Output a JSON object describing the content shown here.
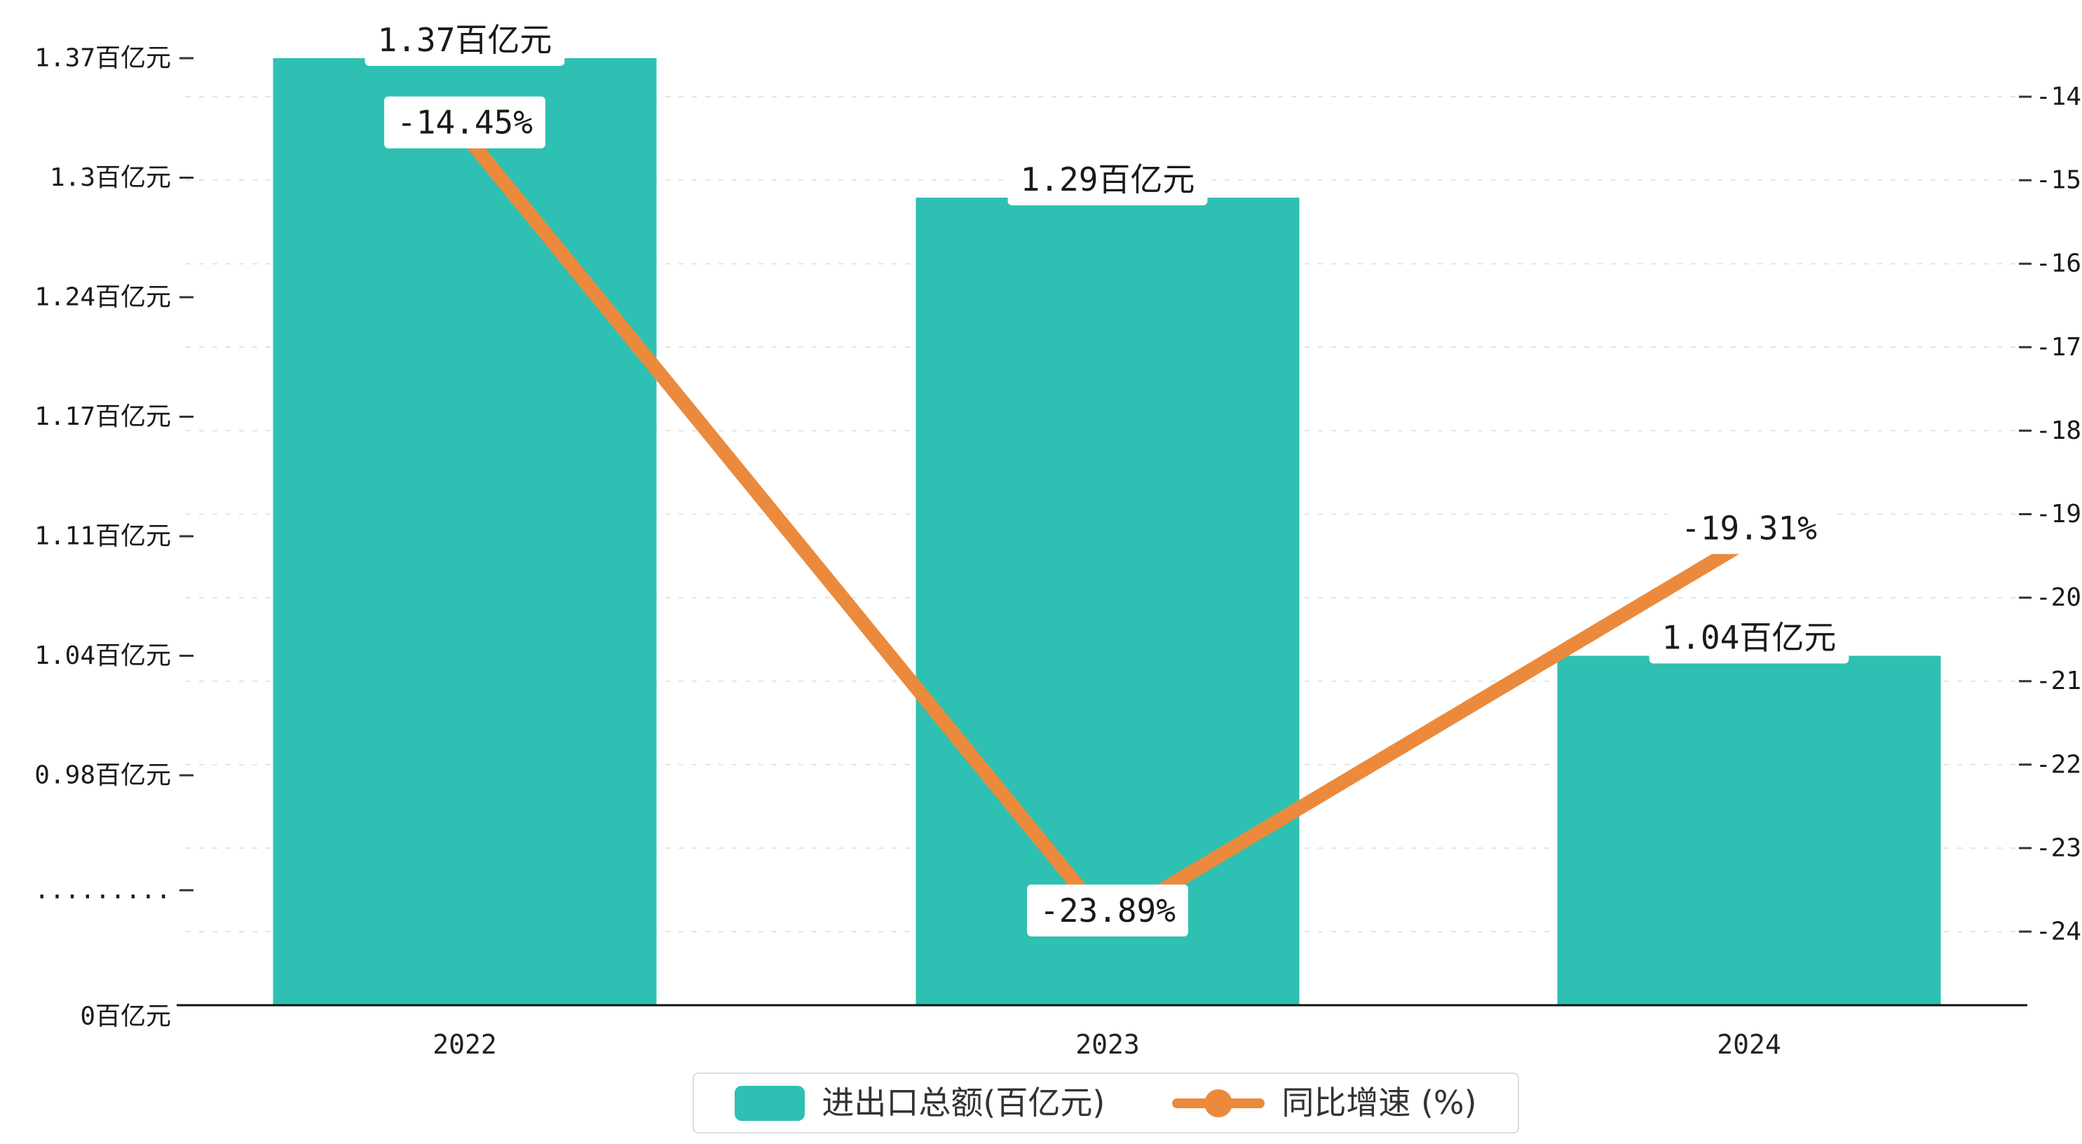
{
  "chart_data": {
    "type": "bar+line",
    "categories": [
      "2022",
      "2023",
      "2024"
    ],
    "series": [
      {
        "name": "进出口总额(百亿元)",
        "type": "bar",
        "axis": "left",
        "unit": "百亿元",
        "color": "#2EC0B2",
        "values": [
          1.37,
          1.29,
          1.04
        ],
        "data_labels": [
          "1.37百亿元",
          "1.29百亿元",
          "1.04百亿元"
        ]
      },
      {
        "name": "同比增速 (%)",
        "type": "line",
        "axis": "right",
        "unit": "%",
        "color": "#EB8A3C",
        "values": [
          -14.45,
          -23.89,
          -19.31
        ],
        "data_labels": [
          "-14.45%",
          "-23.89%",
          "-19.31%"
        ]
      }
    ],
    "left_axis": {
      "tick_labels": [
        "1.37百亿元",
        "1.3百亿元",
        "1.24百亿元",
        "1.17百亿元",
        "1.11百亿元",
        "1.04百亿元",
        "0.98百亿元"
      ],
      "tick_values": [
        1.37,
        1.3,
        1.24,
        1.17,
        1.11,
        1.04,
        0.98
      ],
      "break_label": ".........",
      "zero_label": "0百亿元",
      "axis_break": true
    },
    "right_axis": {
      "tick_labels": [
        "-14",
        "-15",
        "-16",
        "-17",
        "-18",
        "-19",
        "-20",
        "-21",
        "-22",
        "-23",
        "-24"
      ],
      "tick_values": [
        -14,
        -15,
        -16,
        -17,
        -18,
        -19,
        -20,
        -21,
        -22,
        -23,
        -24
      ],
      "max": -14,
      "min": -24
    },
    "grid": "dashed horizontal lines",
    "legend_position": "bottom-center",
    "title": "",
    "xlabel": "",
    "ylabel_left": "百亿元",
    "ylabel_right": "%"
  },
  "style": {
    "bar_color": "#2EC0B2",
    "line_color": "#EB8A3C",
    "tick_text_color": "#1a1a1a",
    "grid_color": "#e4e4e4",
    "axis_color": "#111111",
    "label_box_color": "#ffffff"
  }
}
